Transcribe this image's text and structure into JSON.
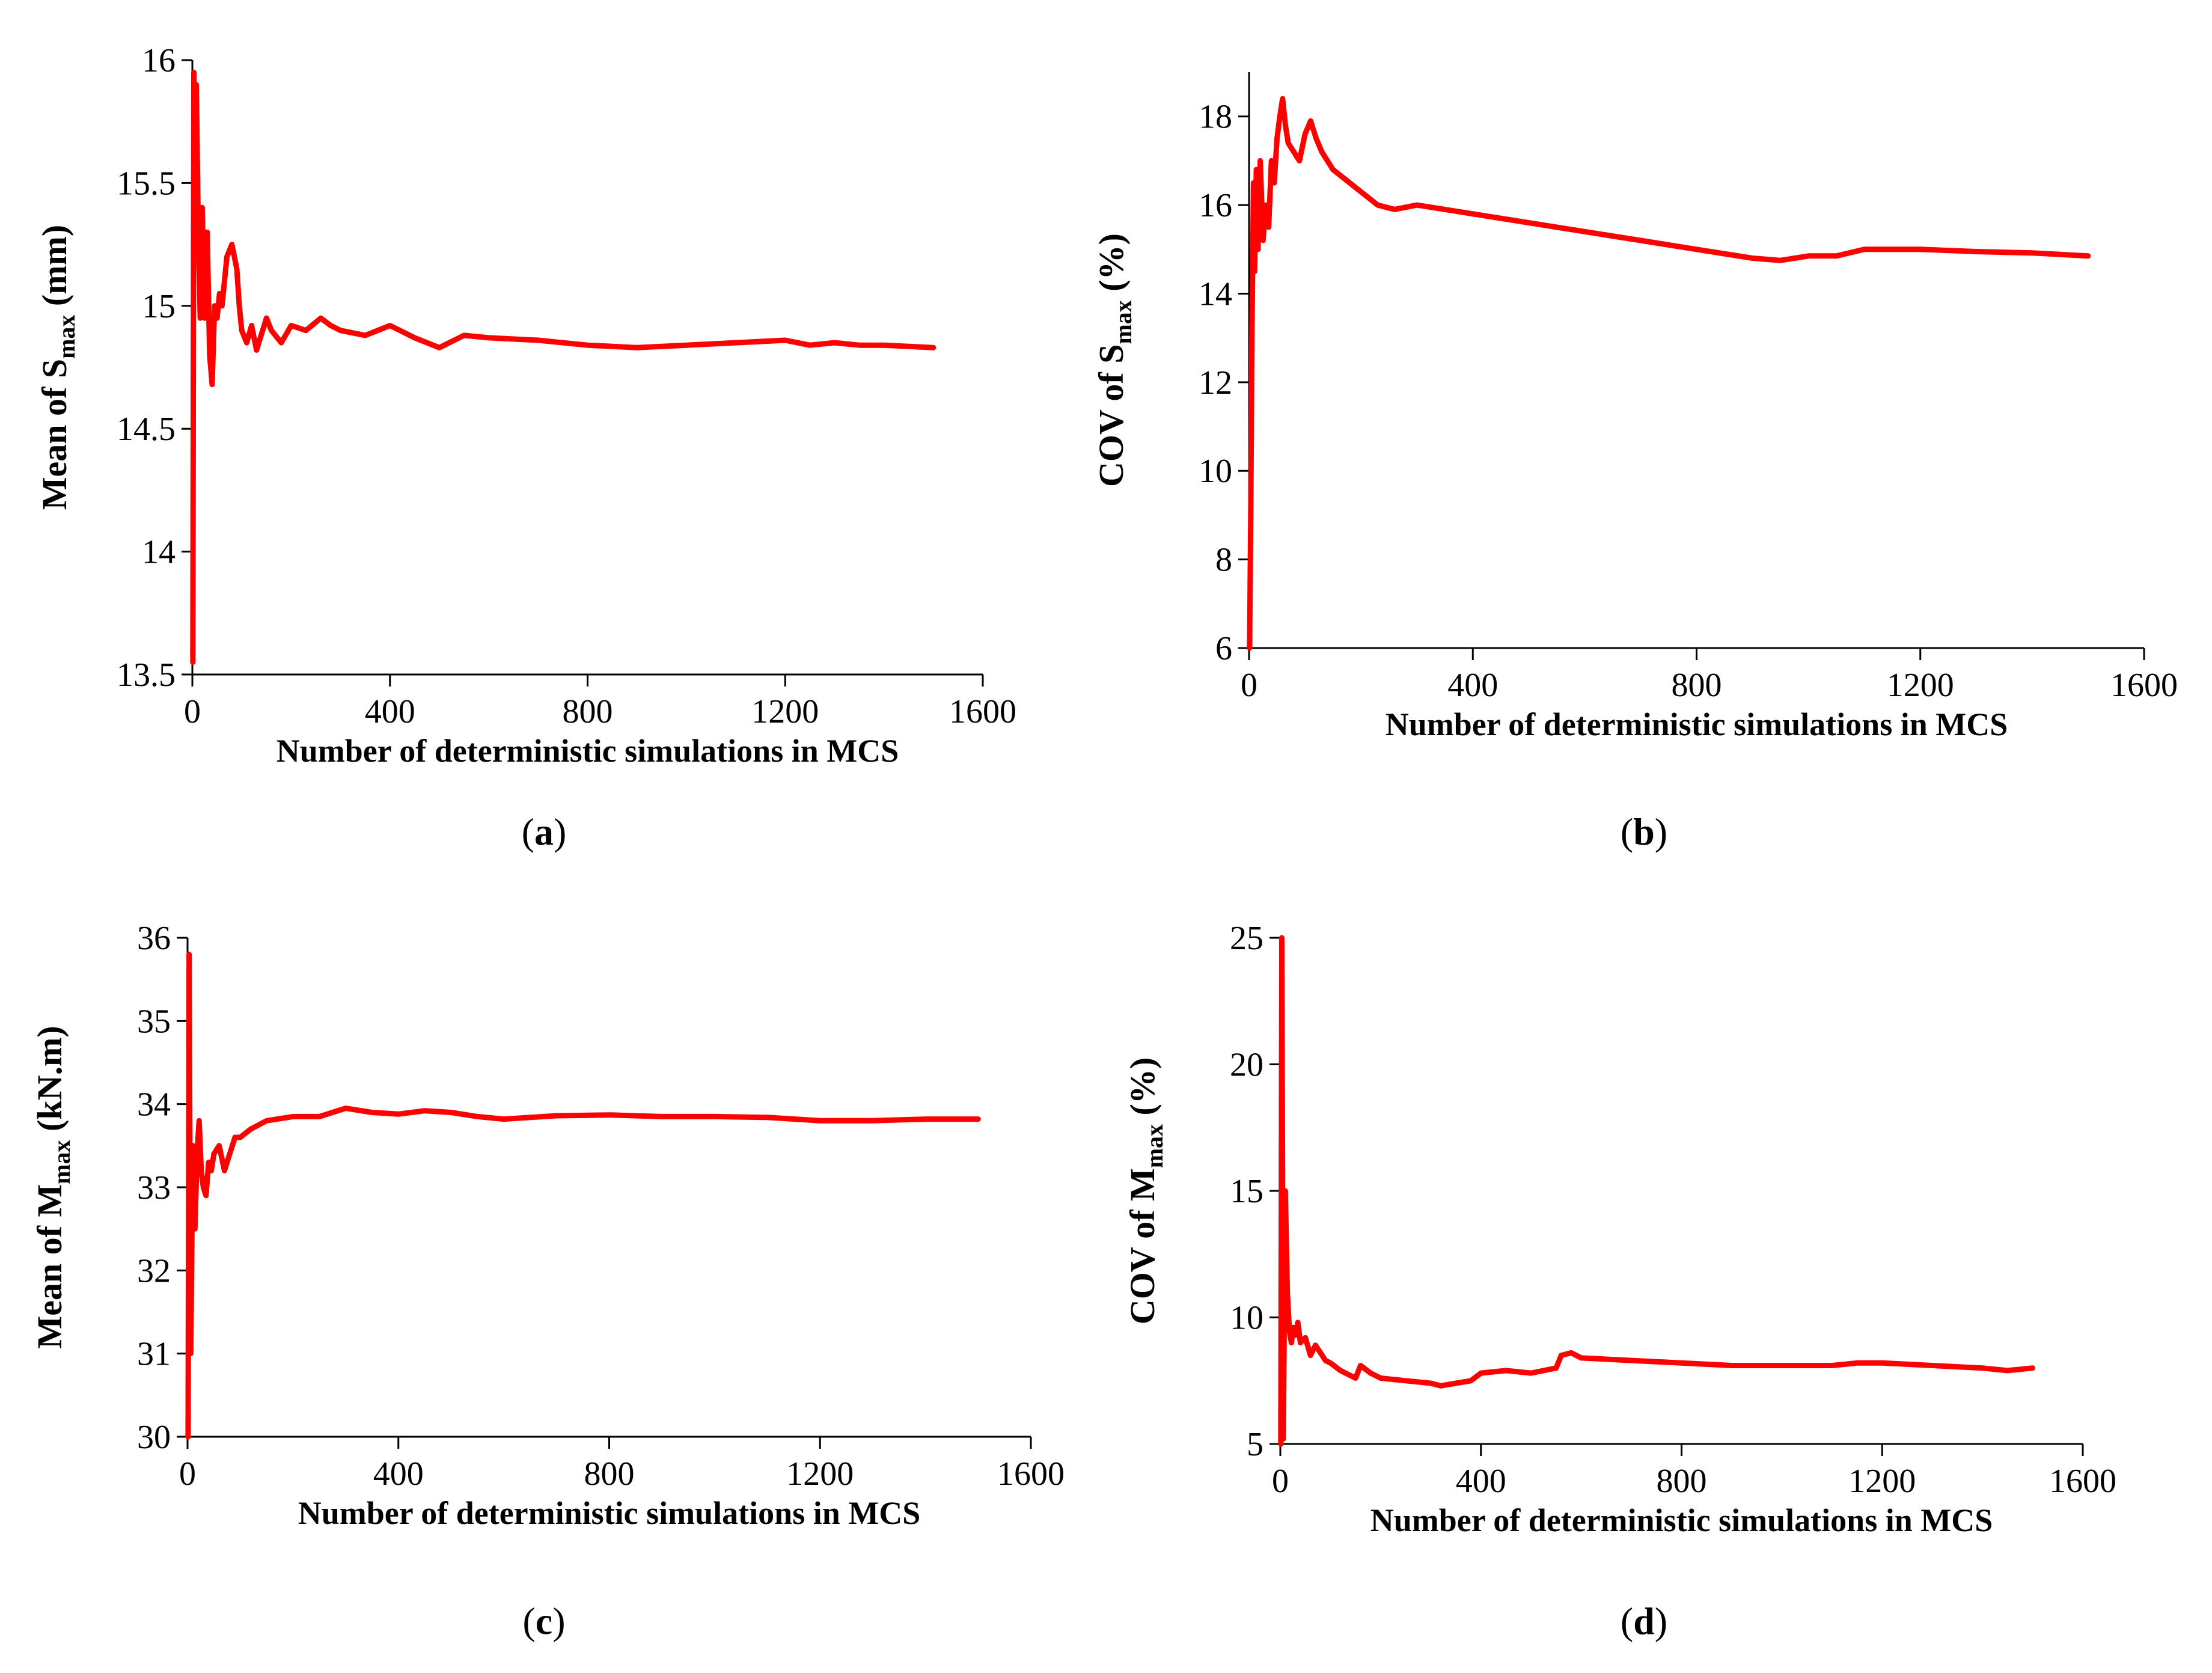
{
  "series_color": "#ff0000",
  "chart_data": [
    {
      "id": "a",
      "type": "line",
      "panel_label": "a",
      "xlabel": "Number of deterministic simulations in MCS",
      "ylabel_main": "Mean of S",
      "ylabel_sub": "max",
      "ylabel_suffix": " (mm)",
      "xlim": [
        0,
        1600
      ],
      "ylim": [
        13.5,
        16
      ],
      "xticks": [
        0,
        400,
        800,
        1200,
        1600
      ],
      "yticks": [
        13.5,
        14,
        14.5,
        15,
        15.5,
        16
      ],
      "ytick_labels": [
        "13.5",
        "14",
        "14.5",
        "15",
        "15.5",
        "16"
      ],
      "x": [
        1,
        3,
        5,
        8,
        12,
        16,
        20,
        25,
        30,
        35,
        40,
        45,
        50,
        55,
        60,
        65,
        70,
        80,
        90,
        95,
        100,
        110,
        120,
        130,
        150,
        160,
        180,
        200,
        230,
        260,
        280,
        300,
        350,
        400,
        450,
        500,
        550,
        600,
        700,
        800,
        900,
        1000,
        1100,
        1200,
        1250,
        1300,
        1350,
        1400,
        1500
      ],
      "y": [
        13.55,
        15.95,
        15.6,
        15.9,
        15.3,
        14.95,
        15.4,
        14.95,
        15.3,
        14.8,
        14.68,
        15.0,
        14.95,
        15.05,
        15.0,
        15.1,
        15.2,
        15.25,
        15.15,
        15.0,
        14.9,
        14.85,
        14.92,
        14.82,
        14.95,
        14.9,
        14.85,
        14.92,
        14.9,
        14.95,
        14.92,
        14.9,
        14.88,
        14.92,
        14.87,
        14.83,
        14.88,
        14.87,
        14.86,
        14.84,
        14.83,
        14.84,
        14.85,
        14.86,
        14.84,
        14.85,
        14.84,
        14.84,
        14.83
      ]
    },
    {
      "id": "b",
      "type": "line",
      "panel_label": "b",
      "xlabel": "Number of deterministic simulations in MCS",
      "ylabel_main": "COV of S",
      "ylabel_sub": "max",
      "ylabel_suffix": " (%)",
      "xlim": [
        0,
        1600
      ],
      "ylim": [
        6,
        19
      ],
      "xticks": [
        0,
        400,
        800,
        1200,
        1600
      ],
      "yticks": [
        6,
        8,
        10,
        12,
        14,
        16,
        18
      ],
      "ytick_labels": [
        "6",
        "8",
        "10",
        "12",
        "14",
        "16",
        "18"
      ],
      "x": [
        1,
        3,
        5,
        8,
        10,
        13,
        16,
        20,
        25,
        30,
        35,
        40,
        45,
        50,
        55,
        60,
        65,
        70,
        80,
        90,
        100,
        110,
        120,
        130,
        150,
        180,
        200,
        230,
        260,
        300,
        350,
        400,
        500,
        600,
        700,
        800,
        900,
        950,
        1000,
        1050,
        1100,
        1200,
        1300,
        1400,
        1500
      ],
      "y": [
        6.0,
        9.0,
        13.0,
        16.5,
        14.5,
        16.8,
        15.0,
        17.0,
        15.2,
        16.0,
        15.5,
        17.0,
        16.5,
        17.5,
        18.0,
        18.4,
        17.8,
        17.4,
        17.2,
        17.0,
        17.6,
        17.9,
        17.5,
        17.2,
        16.8,
        16.5,
        16.3,
        16.0,
        15.9,
        16.0,
        15.9,
        15.8,
        15.6,
        15.4,
        15.2,
        15.0,
        14.8,
        14.75,
        14.85,
        14.85,
        15.0,
        15.0,
        14.95,
        14.92,
        14.85
      ]
    },
    {
      "id": "c",
      "type": "line",
      "panel_label": "c",
      "xlabel": "Number of deterministic simulations in MCS",
      "ylabel_main": "Mean of M",
      "ylabel_sub": "max",
      "ylabel_suffix": " (kN.m)",
      "xlim": [
        0,
        1600
      ],
      "ylim": [
        30,
        36
      ],
      "xticks": [
        0,
        400,
        800,
        1200,
        1600
      ],
      "yticks": [
        30,
        31,
        32,
        33,
        34,
        35,
        36
      ],
      "ytick_labels": [
        "30",
        "31",
        "32",
        "33",
        "34",
        "35",
        "36"
      ],
      "x": [
        1,
        3,
        6,
        10,
        14,
        18,
        22,
        26,
        30,
        35,
        40,
        45,
        50,
        60,
        70,
        80,
        90,
        100,
        120,
        150,
        200,
        250,
        300,
        350,
        400,
        450,
        500,
        550,
        600,
        700,
        800,
        900,
        1000,
        1100,
        1200,
        1300,
        1400,
        1500
      ],
      "y": [
        30.0,
        35.8,
        31.0,
        33.5,
        32.5,
        33.4,
        33.8,
        33.2,
        33.0,
        32.9,
        33.3,
        33.2,
        33.4,
        33.5,
        33.2,
        33.4,
        33.6,
        33.6,
        33.7,
        33.8,
        33.85,
        33.85,
        33.95,
        33.9,
        33.88,
        33.92,
        33.9,
        33.85,
        33.82,
        33.86,
        33.87,
        33.85,
        33.85,
        33.84,
        33.8,
        33.8,
        33.82,
        33.82
      ]
    },
    {
      "id": "d",
      "type": "line",
      "panel_label": "d",
      "xlabel": "Number of deterministic simulations in MCS",
      "ylabel_main": "COV of M",
      "ylabel_sub": "max",
      "ylabel_suffix": " (%)",
      "xlim": [
        0,
        1600
      ],
      "ylim": [
        5,
        25
      ],
      "xticks": [
        0,
        400,
        800,
        1200,
        1600
      ],
      "yticks": [
        5,
        10,
        15,
        20,
        25
      ],
      "ytick_labels": [
        "5",
        "10",
        "15",
        "20",
        "25"
      ],
      "x": [
        1,
        3,
        6,
        10,
        14,
        18,
        22,
        26,
        30,
        35,
        40,
        50,
        60,
        70,
        80,
        90,
        100,
        120,
        150,
        160,
        180,
        200,
        250,
        300,
        320,
        350,
        380,
        400,
        450,
        500,
        550,
        560,
        580,
        600,
        700,
        800,
        900,
        1000,
        1100,
        1150,
        1200,
        1300,
        1400,
        1450,
        1500
      ],
      "y": [
        5.0,
        25.0,
        5.2,
        15.0,
        11.0,
        9.5,
        9.0,
        9.6,
        9.3,
        9.8,
        9.0,
        9.2,
        8.5,
        8.9,
        8.6,
        8.3,
        8.2,
        7.9,
        7.6,
        8.1,
        7.8,
        7.6,
        7.5,
        7.4,
        7.3,
        7.4,
        7.5,
        7.8,
        7.9,
        7.8,
        8.0,
        8.5,
        8.6,
        8.4,
        8.3,
        8.2,
        8.1,
        8.1,
        8.1,
        8.2,
        8.2,
        8.1,
        8.0,
        7.9,
        8.0
      ]
    }
  ]
}
